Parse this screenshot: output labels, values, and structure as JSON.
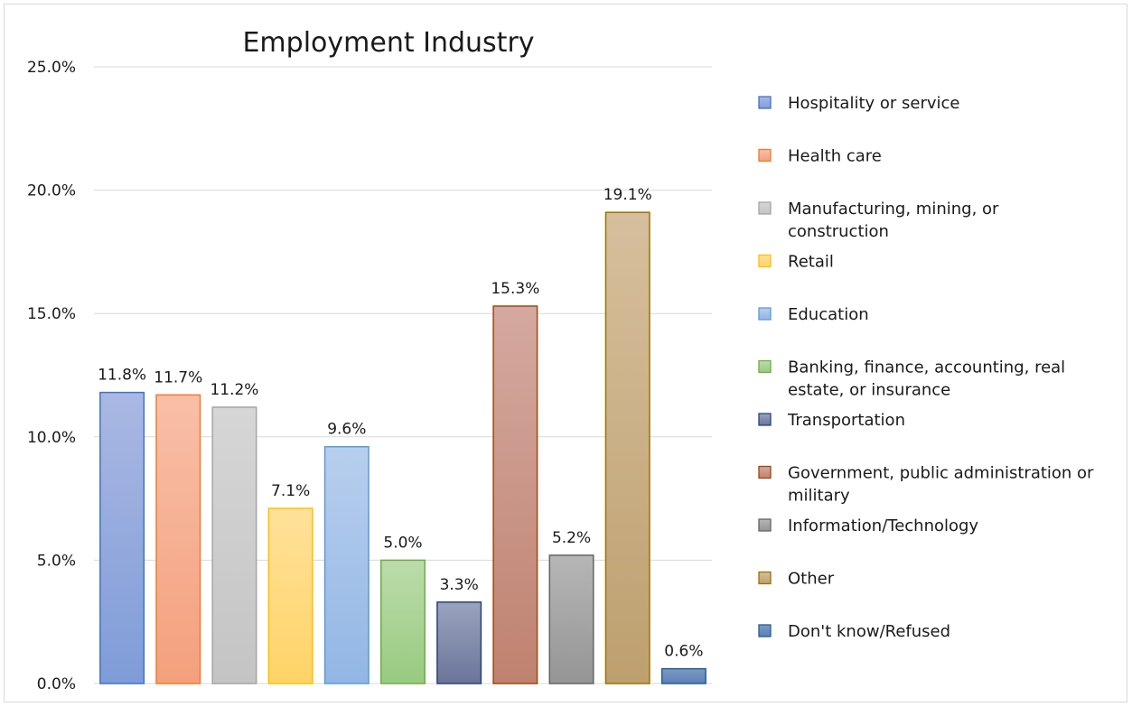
{
  "chart_data": {
    "type": "bar",
    "title": "Employment Industry",
    "xlabel": "",
    "ylabel": "",
    "ylim": [
      0,
      25
    ],
    "y_ticks": [
      "0.0%",
      "5.0%",
      "10.0%",
      "15.0%",
      "20.0%",
      "25.0%"
    ],
    "y_tick_values": [
      0,
      5,
      10,
      15,
      20,
      25
    ],
    "grid": true,
    "legend_position": "right",
    "series": [
      {
        "name": "Hospitality or service",
        "value": 11.8,
        "label": "11.8%",
        "fill_top": "#aab8e3",
        "fill_bottom": "#7f9cd8",
        "stroke": "#4472c4",
        "legend_lines": [
          "Hospitality or service"
        ]
      },
      {
        "name": "Health care",
        "value": 11.7,
        "label": "11.7%",
        "fill_top": "#f8bfa8",
        "fill_bottom": "#f4a07c",
        "stroke": "#ed7d31",
        "legend_lines": [
          "Health care"
        ]
      },
      {
        "name": "Manufacturing, mining, or construction",
        "value": 11.2,
        "label": "11.2%",
        "fill_top": "#d6d6d6",
        "fill_bottom": "#c4c4c4",
        "stroke": "#a5a5a5",
        "legend_lines": [
          "Manufacturing, mining, or",
          "construction"
        ]
      },
      {
        "name": "Retail",
        "value": 7.1,
        "label": "7.1%",
        "fill_top": "#ffe19a",
        "fill_bottom": "#ffd366",
        "stroke": "#ffc000",
        "legend_lines": [
          "Retail"
        ]
      },
      {
        "name": "Education",
        "value": 9.6,
        "label": "9.6%",
        "fill_top": "#b8cfee",
        "fill_bottom": "#92b6e4",
        "stroke": "#5b9bd5",
        "legend_lines": [
          "Education"
        ]
      },
      {
        "name": "Banking, finance, accounting, real estate, or insurance",
        "value": 5.0,
        "label": "5.0%",
        "fill_top": "#bcdcaa",
        "fill_bottom": "#98ca80",
        "stroke": "#70ad47",
        "legend_lines": [
          "Banking, finance, accounting, real",
          "estate, or insurance"
        ]
      },
      {
        "name": "Transportation",
        "value": 3.3,
        "label": "3.3%",
        "fill_top": "#9aa3bf",
        "fill_bottom": "#6a7598",
        "stroke": "#264478",
        "legend_lines": [
          "Transportation"
        ]
      },
      {
        "name": "Government, public administration or military",
        "value": 15.3,
        "label": "15.3%",
        "fill_top": "#d4a9a0",
        "fill_bottom": "#bf8270",
        "stroke": "#9e480e",
        "legend_lines": [
          "Government, public administration or",
          "military"
        ]
      },
      {
        "name": "Information/Technology",
        "value": 5.2,
        "label": "5.2%",
        "fill_top": "#b6b6b6",
        "fill_bottom": "#959595",
        "stroke": "#636363",
        "legend_lines": [
          "Information/Technology"
        ]
      },
      {
        "name": "Other",
        "value": 19.1,
        "label": "19.1%",
        "fill_top": "#d6bf9d",
        "fill_bottom": "#bea06f",
        "stroke": "#997300",
        "legend_lines": [
          "Other"
        ]
      },
      {
        "name": "Don't know/Refused",
        "value": 0.6,
        "label": "0.6%",
        "fill_top": "#7b9ac6",
        "fill_bottom": "#5b7fb6",
        "stroke": "#255e91",
        "legend_lines": [
          "Don't know/Refused"
        ]
      }
    ]
  }
}
